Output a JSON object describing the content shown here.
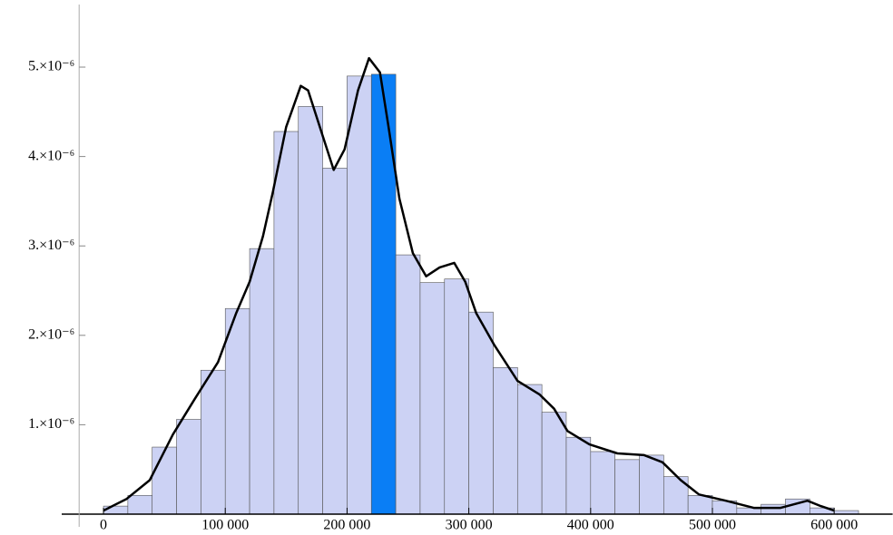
{
  "chart_data": {
    "type": "histogram",
    "bins": [
      0,
      20000,
      40000,
      60000,
      80000,
      100000,
      120000,
      140000,
      160000,
      180000,
      200000,
      220000,
      240000,
      260000,
      280000,
      300000,
      320000,
      340000,
      360000,
      380000,
      400000,
      420000,
      440000,
      460000,
      480000,
      500000,
      520000,
      540000,
      560000,
      580000,
      600000,
      620000
    ],
    "values": [
      9e-08,
      2.1e-07,
      7.5e-07,
      1.06e-06,
      1.61e-06,
      2.3e-06,
      2.97e-06,
      4.28e-06,
      4.56e-06,
      3.87e-06,
      4.9e-06,
      4.92e-06,
      2.9e-06,
      2.59e-06,
      2.63e-06,
      2.26e-06,
      1.64e-06,
      1.45e-06,
      1.14e-06,
      8.6e-07,
      7e-07,
      6.1e-07,
      6.6e-07,
      4.2e-07,
      2.1e-07,
      1.5e-07,
      7e-08,
      1.1e-07,
      1.7e-07,
      7e-08,
      4e-08
    ],
    "colors": [
      "#ccd2f4",
      "#ccd2f4",
      "#ccd2f4",
      "#ccd2f4",
      "#ccd2f4",
      "#ccd2f4",
      "#ccd2f4",
      "#ccd2f4",
      "#ccd2f4",
      "#ccd2f4",
      "#ccd2f4",
      "#0a7ef5",
      "#ccd2f4",
      "#ccd2f4",
      "#ccd2f4",
      "#ccd2f4",
      "#ccd2f4",
      "#ccd2f4",
      "#ccd2f4",
      "#ccd2f4",
      "#ccd2f4",
      "#ccd2f4",
      "#ccd2f4",
      "#ccd2f4",
      "#ccd2f4",
      "#ccd2f4",
      "#ccd2f4",
      "#ccd2f4",
      "#ccd2f4",
      "#ccd2f4",
      "#ccd2f4"
    ],
    "curve": {
      "color": "#000000",
      "x": [
        0,
        19000,
        38000,
        57000,
        75000,
        94000,
        109000,
        120000,
        131000,
        139000,
        150000,
        162000,
        168000,
        180000,
        189000,
        198000,
        209000,
        218000,
        227000,
        234000,
        243000,
        254000,
        265000,
        276000,
        288000,
        297000,
        306000,
        321000,
        340000,
        358000,
        370000,
        381000,
        399000,
        422000,
        444000,
        459000,
        474000,
        489000,
        511000,
        534000,
        556000,
        578000,
        589000,
        600000
      ],
      "values": [
        4e-08,
        1.7e-07,
        3.8e-07,
        8.9e-07,
        1.29e-06,
        1.7e-06,
        2.25e-06,
        2.6e-06,
        3.11e-06,
        3.6e-06,
        4.33e-06,
        4.79e-06,
        4.74e-06,
        4.23e-06,
        3.85e-06,
        4.08e-06,
        4.74e-06,
        5.1e-06,
        4.94e-06,
        4.34e-06,
        3.53e-06,
        2.92e-06,
        2.66e-06,
        2.76e-06,
        2.81e-06,
        2.6e-06,
        2.25e-06,
        1.89e-06,
        1.49e-06,
        1.34e-06,
        1.18e-06,
        9.3e-07,
        7.8e-07,
        6.8e-07,
        6.6e-07,
        5.8e-07,
        3.8e-07,
        2.2e-07,
        1.5e-07,
        7e-08,
        7e-08,
        1.5e-07,
        9e-08,
        4e-08
      ]
    },
    "xlim": [
      -20000,
      648000
    ],
    "ylim": [
      0,
      5.7e-06
    ],
    "xticks": [
      0,
      {
        "value": 100000,
        "label": "100 000"
      },
      {
        "value": 200000,
        "label": "200 000"
      },
      {
        "value": 300000,
        "label": "300 000"
      },
      {
        "value": 400000,
        "label": "400 000"
      },
      {
        "value": 500000,
        "label": "500 000"
      },
      {
        "value": 600000,
        "label": "600 000"
      }
    ],
    "yticks": [
      {
        "value": 1e-06,
        "label": "1.×10⁻⁶"
      },
      {
        "value": 2e-06,
        "label": "2.×10⁻⁶"
      },
      {
        "value": 3e-06,
        "label": "3.×10⁻⁶"
      },
      {
        "value": 4e-06,
        "label": "4.×10⁻⁶"
      },
      {
        "value": 5e-06,
        "label": "5.×10⁻⁶"
      }
    ]
  }
}
